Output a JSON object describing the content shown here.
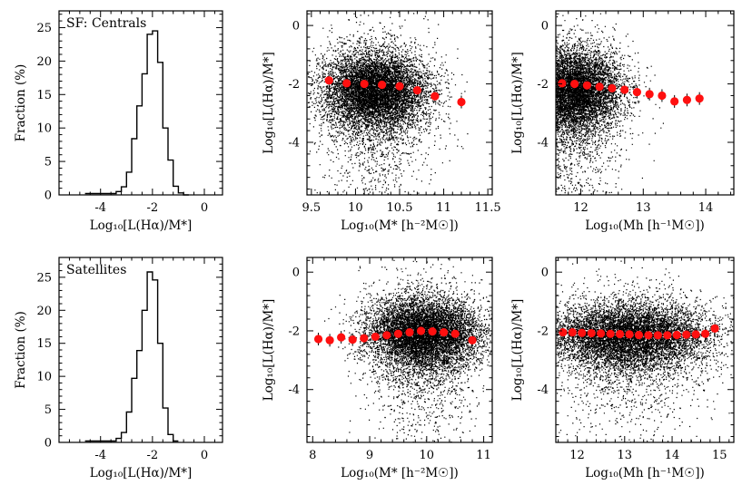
{
  "chart_data": [
    {
      "id": "sf-centrals-hist",
      "type": "histogram",
      "annotation": "SF: Centrals",
      "xlabel": "Log₁₀[L(Hα)/M*]",
      "ylabel": "Fraction (%)",
      "xlim": [
        -5.6,
        0.7
      ],
      "ylim": [
        0,
        27.5
      ],
      "xticks": [
        -4,
        -2,
        0
      ],
      "yticks": [
        0,
        5,
        10,
        15,
        20,
        25
      ],
      "bins": [
        {
          "x0": -4.6,
          "x1": -3.4,
          "y": 0.2
        },
        {
          "x0": -3.4,
          "x1": -3.2,
          "y": 0.5
        },
        {
          "x0": -3.2,
          "x1": -3.0,
          "y": 1.2
        },
        {
          "x0": -3.0,
          "x1": -2.8,
          "y": 3.4
        },
        {
          "x0": -2.8,
          "x1": -2.6,
          "y": 8.4
        },
        {
          "x0": -2.6,
          "x1": -2.4,
          "y": 13.3
        },
        {
          "x0": -2.4,
          "x1": -2.2,
          "y": 18.1
        },
        {
          "x0": -2.2,
          "x1": -2.0,
          "y": 24.0
        },
        {
          "x0": -2.0,
          "x1": -1.8,
          "y": 24.5
        },
        {
          "x0": -1.8,
          "x1": -1.6,
          "y": 19.8
        },
        {
          "x0": -1.6,
          "x1": -1.4,
          "y": 10.0
        },
        {
          "x0": -1.4,
          "x1": -1.2,
          "y": 5.2
        },
        {
          "x0": -1.2,
          "x1": -1.0,
          "y": 1.3
        },
        {
          "x0": -1.0,
          "x1": -0.8,
          "y": 0.3
        },
        {
          "x0": -0.8,
          "x1": -0.6,
          "y": 0.0
        }
      ]
    },
    {
      "id": "sf-centrals-stellar",
      "type": "scatter",
      "xlabel": "Log₁₀(M* [h⁻²M☉])",
      "ylabel": "Log₁₀[L(Hα)/M*]",
      "xlim": [
        9.45,
        11.55
      ],
      "ylim": [
        -5.8,
        0.5
      ],
      "xticks": [
        9.5,
        10,
        10.5,
        11,
        11.5
      ],
      "yticks": [
        -4,
        -2,
        0
      ],
      "cloud": {
        "cx": 10.22,
        "cy": -2.2,
        "sx": 0.3,
        "sy": 0.65,
        "tail": 0.95
      },
      "medians": {
        "x": [
          9.7,
          9.9,
          10.1,
          10.3,
          10.5,
          10.7,
          10.9,
          11.2
        ],
        "y": [
          -1.88,
          -1.98,
          -2.0,
          -2.03,
          -2.08,
          -2.22,
          -2.42,
          -2.62
        ]
      }
    },
    {
      "id": "sf-centrals-halo",
      "type": "scatter",
      "xlabel": "Log₁₀(Mh [h⁻¹M☉])",
      "ylabel": "Log₁₀[L(Hα)/M*]",
      "xlim": [
        11.6,
        14.45
      ],
      "ylim": [
        -5.8,
        0.5
      ],
      "xticks": [
        12,
        13,
        14
      ],
      "yticks": [
        -4,
        -2,
        0
      ],
      "cloud": {
        "cx": 11.85,
        "cy": -2.2,
        "sx": 0.4,
        "sy": 0.7,
        "tail": 1.0
      },
      "medians": {
        "x": [
          11.7,
          11.9,
          12.1,
          12.3,
          12.5,
          12.7,
          12.9,
          13.1,
          13.3,
          13.5,
          13.7,
          13.9
        ],
        "y": [
          -1.98,
          -2.0,
          -2.05,
          -2.1,
          -2.15,
          -2.2,
          -2.28,
          -2.35,
          -2.4,
          -2.6,
          -2.55,
          -2.5
        ]
      }
    },
    {
      "id": "satellites-hist",
      "type": "histogram",
      "annotation": "Satellites",
      "xlabel": "Log₁₀[L(Hα)/M*]",
      "ylabel": "Fraction (%)",
      "xlim": [
        -5.6,
        0.7
      ],
      "ylim": [
        0,
        28
      ],
      "xticks": [
        -4,
        -2,
        0
      ],
      "yticks": [
        0,
        5,
        10,
        15,
        20,
        25
      ],
      "bins": [
        {
          "x0": -4.6,
          "x1": -3.4,
          "y": 0.2
        },
        {
          "x0": -3.4,
          "x1": -3.2,
          "y": 0.6
        },
        {
          "x0": -3.2,
          "x1": -3.0,
          "y": 1.5
        },
        {
          "x0": -3.0,
          "x1": -2.8,
          "y": 4.6
        },
        {
          "x0": -2.8,
          "x1": -2.6,
          "y": 9.7
        },
        {
          "x0": -2.6,
          "x1": -2.4,
          "y": 13.9
        },
        {
          "x0": -2.4,
          "x1": -2.2,
          "y": 20.0
        },
        {
          "x0": -2.2,
          "x1": -2.0,
          "y": 25.8
        },
        {
          "x0": -2.0,
          "x1": -1.8,
          "y": 24.6
        },
        {
          "x0": -1.8,
          "x1": -1.6,
          "y": 15.0
        },
        {
          "x0": -1.6,
          "x1": -1.4,
          "y": 5.2
        },
        {
          "x0": -1.4,
          "x1": -1.2,
          "y": 1.2
        },
        {
          "x0": -1.2,
          "x1": -1.0,
          "y": 0.2
        }
      ]
    },
    {
      "id": "satellites-stellar",
      "type": "scatter",
      "xlabel": "Log₁₀(M* [h⁻²M☉])",
      "ylabel": "Log₁₀[L(Hα)/M*]",
      "xlim": [
        7.9,
        11.15
      ],
      "ylim": [
        -5.8,
        0.5
      ],
      "xticks": [
        8,
        9,
        10,
        11
      ],
      "yticks": [
        -4,
        -2,
        0
      ],
      "cloud": {
        "cx": 9.95,
        "cy": -2.05,
        "sx": 0.5,
        "sy": 0.6,
        "tail": 0.9
      },
      "medians": {
        "x": [
          8.1,
          8.3,
          8.5,
          8.7,
          8.9,
          9.1,
          9.3,
          9.5,
          9.7,
          9.9,
          10.1,
          10.3,
          10.5,
          10.8
        ],
        "y": [
          -2.28,
          -2.32,
          -2.22,
          -2.3,
          -2.25,
          -2.2,
          -2.15,
          -2.1,
          -2.05,
          -2.0,
          -2.02,
          -2.05,
          -2.1,
          -2.32
        ]
      }
    },
    {
      "id": "satellites-halo",
      "type": "scatter",
      "xlabel": "Log₁₀(Mh [h⁻¹M☉])",
      "ylabel": "Log₁₀[L(Hα)/M*]",
      "xlim": [
        11.55,
        15.3
      ],
      "ylim": [
        -5.8,
        0.5
      ],
      "xticks": [
        12,
        13,
        14,
        15
      ],
      "yticks": [
        -4,
        -2,
        0
      ],
      "cloud": {
        "cx": 13.1,
        "cy": -2.15,
        "sx": 0.85,
        "sy": 0.55,
        "tail": 0.8
      },
      "medians": {
        "x": [
          11.7,
          11.9,
          12.1,
          12.3,
          12.5,
          12.7,
          12.9,
          13.1,
          13.3,
          13.5,
          13.7,
          13.9,
          14.1,
          14.3,
          14.5,
          14.7,
          14.9
        ],
        "y": [
          -2.05,
          -2.05,
          -2.07,
          -2.08,
          -2.09,
          -2.1,
          -2.11,
          -2.12,
          -2.14,
          -2.15,
          -2.15,
          -2.15,
          -2.14,
          -2.13,
          -2.12,
          -2.1,
          -1.92
        ]
      }
    }
  ]
}
